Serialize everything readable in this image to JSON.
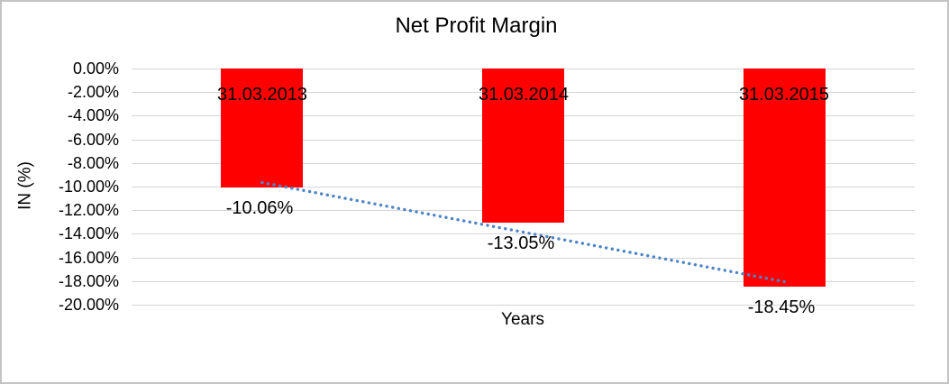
{
  "chart_data": {
    "type": "bar",
    "title": "Net Profit Margin",
    "xlabel": "Years",
    "ylabel": "IN (%)",
    "categories": [
      "31.03.2013",
      "31.03.2014",
      "31.03.2015"
    ],
    "values": [
      -10.06,
      -13.05,
      -18.45
    ],
    "data_labels": [
      "-10.06%",
      "-13.05%",
      "-18.45%"
    ],
    "y_ticks": [
      {
        "value": 0,
        "label": "0.00%"
      },
      {
        "value": -2,
        "label": "-2.00%"
      },
      {
        "value": -4,
        "label": "-4.00%"
      },
      {
        "value": -6,
        "label": "-6.00%"
      },
      {
        "value": -8,
        "label": "-8.00%"
      },
      {
        "value": -10,
        "label": "-10.00%"
      },
      {
        "value": -12,
        "label": "-12.00%"
      },
      {
        "value": -14,
        "label": "-14.00%"
      },
      {
        "value": -16,
        "label": "-16.00%"
      },
      {
        "value": -18,
        "label": "-18.00%"
      },
      {
        "value": -20,
        "label": "-20.00%"
      }
    ],
    "ylim": [
      -20,
      0
    ],
    "grid": true,
    "legend": "none",
    "bar_color": "#ff0000",
    "trendline": {
      "type": "linear",
      "style": "dotted",
      "color": "#4f86c6"
    }
  }
}
